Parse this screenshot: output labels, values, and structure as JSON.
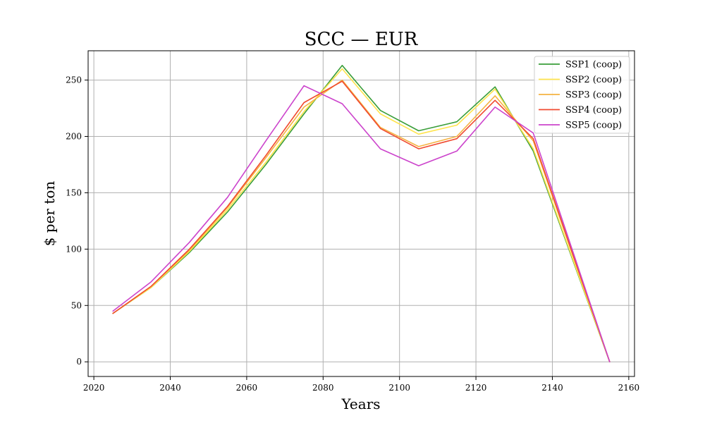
{
  "chart_data": {
    "type": "line",
    "title": "SCC — EUR",
    "xlabel": "Years",
    "ylabel": "$ per ton",
    "xlim": [
      2018.5,
      2161.5
    ],
    "ylim": [
      -13,
      276
    ],
    "xticks": [
      2020,
      2040,
      2060,
      2080,
      2100,
      2120,
      2140,
      2160
    ],
    "yticks": [
      0,
      50,
      100,
      150,
      200,
      250
    ],
    "grid": true,
    "legend_position": "top-right",
    "x": [
      2025,
      2035,
      2045,
      2055,
      2065,
      2075,
      2085,
      2095,
      2105,
      2115,
      2125,
      2135,
      2155
    ],
    "series": [
      {
        "name": "SSP1 (coop)",
        "color": "#3a9e3a",
        "values": [
          43,
          66,
          97,
          133,
          175,
          220,
          263,
          223,
          205,
          213,
          244,
          187,
          0
        ]
      },
      {
        "name": "SSP2 (coop)",
        "color": "#ffe44d",
        "values": [
          43,
          66,
          98,
          135,
          177,
          222,
          260,
          220,
          202,
          210,
          242,
          189,
          0
        ]
      },
      {
        "name": "SSP3 (coop)",
        "color": "#f5b342",
        "values": [
          43,
          67,
          99,
          137,
          181,
          226,
          250,
          208,
          191,
          200,
          236,
          196,
          0
        ]
      },
      {
        "name": "SSP4 (coop)",
        "color": "#f04a30",
        "values": [
          43,
          67,
          100,
          138,
          183,
          230,
          249,
          207,
          189,
          198,
          232,
          198,
          0
        ]
      },
      {
        "name": "SSP5 (coop)",
        "color": "#cc44cc",
        "values": [
          45,
          71,
          106,
          146,
          196,
          245,
          229,
          189,
          174,
          187,
          226,
          203,
          0
        ]
      }
    ]
  }
}
